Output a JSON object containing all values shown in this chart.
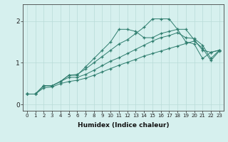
{
  "xlabel": "Humidex (Indice chaleur)",
  "x": [
    0,
    1,
    2,
    3,
    4,
    5,
    6,
    7,
    8,
    9,
    10,
    11,
    12,
    13,
    14,
    15,
    16,
    17,
    18,
    19,
    20,
    21,
    22,
    23
  ],
  "series1": [
    0.25,
    0.25,
    0.45,
    0.45,
    0.55,
    0.7,
    0.7,
    0.9,
    1.1,
    1.3,
    1.5,
    1.8,
    1.8,
    1.75,
    1.6,
    1.6,
    1.7,
    1.75,
    1.8,
    1.5,
    1.45,
    1.1,
    1.25,
    1.3
  ],
  "series2": [
    0.25,
    0.25,
    0.45,
    0.45,
    0.55,
    0.7,
    0.72,
    0.85,
    1.0,
    1.15,
    1.3,
    1.45,
    1.55,
    1.7,
    1.85,
    2.05,
    2.05,
    2.05,
    1.8,
    1.8,
    1.55,
    1.3,
    1.25,
    1.3
  ],
  "series3": [
    0.25,
    0.25,
    0.45,
    0.45,
    0.55,
    0.65,
    0.65,
    0.72,
    0.82,
    0.93,
    1.04,
    1.12,
    1.22,
    1.32,
    1.42,
    1.52,
    1.6,
    1.65,
    1.72,
    1.6,
    1.58,
    1.42,
    1.1,
    1.3
  ],
  "series4": [
    0.25,
    0.25,
    0.4,
    0.42,
    0.5,
    0.55,
    0.58,
    0.63,
    0.7,
    0.78,
    0.86,
    0.94,
    1.01,
    1.08,
    1.16,
    1.22,
    1.28,
    1.34,
    1.4,
    1.46,
    1.52,
    1.35,
    1.05,
    1.28
  ],
  "line_color": "#2e7d6e",
  "bg_color": "#d6f0ee",
  "grid_color": "#b8dbd8",
  "ylim": [
    -0.15,
    2.4
  ],
  "xlim": [
    -0.5,
    23.5
  ],
  "yticks": [
    0,
    1,
    2
  ],
  "xticks": [
    0,
    1,
    2,
    3,
    4,
    5,
    6,
    7,
    8,
    9,
    10,
    11,
    12,
    13,
    14,
    15,
    16,
    17,
    18,
    19,
    20,
    21,
    22,
    23
  ]
}
